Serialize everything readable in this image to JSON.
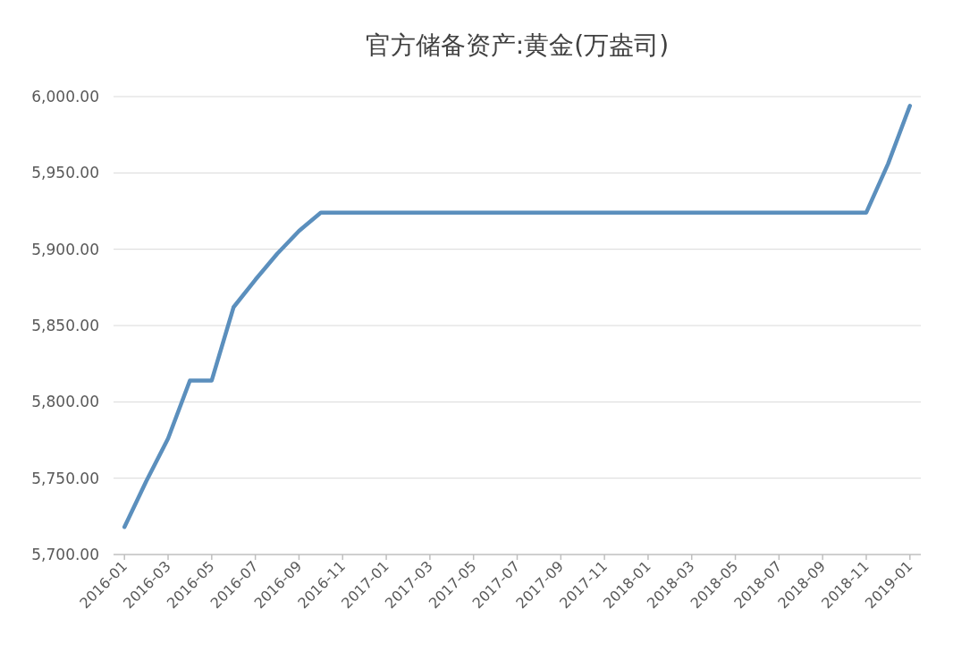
{
  "chart_data": {
    "type": "line",
    "title": "官方储备资产:黄金(万盎司)",
    "categories": [
      "2016-01",
      null,
      "2016-03",
      null,
      "2016-05",
      null,
      "2016-07",
      null,
      "2016-09",
      null,
      "2016-11",
      null,
      "2017-01",
      null,
      "2017-03",
      null,
      "2017-05",
      null,
      "2017-07",
      null,
      "2017-09",
      null,
      "2017-11",
      null,
      "2018-01",
      null,
      "2018-03",
      null,
      "2018-05",
      null,
      "2018-07",
      null,
      "2018-09",
      null,
      "2018-11",
      null,
      "2019-01"
    ],
    "series": [
      {
        "color": "#5b8fbd",
        "values": [
          5718,
          5748,
          5776,
          5814,
          5814,
          5862,
          5880,
          5897,
          5912,
          5924,
          5924,
          5924,
          5924,
          5924,
          5924,
          5924,
          5924,
          5924,
          5924,
          5924,
          5924,
          5924,
          5924,
          5924,
          5924,
          5924,
          5924,
          5924,
          5924,
          5924,
          5924,
          5924,
          5924,
          5924,
          5924,
          5956,
          5994
        ]
      }
    ],
    "ylim": [
      5700,
      6000
    ],
    "yticks": [
      {
        "value": 5700,
        "label": "5,700.00"
      },
      {
        "value": 5750,
        "label": "5,750.00"
      },
      {
        "value": 5800,
        "label": "5,800.00"
      },
      {
        "value": 5850,
        "label": "5,850.00"
      },
      {
        "value": 5900,
        "label": "5,900.00"
      },
      {
        "value": 5950,
        "label": "5,950.00"
      },
      {
        "value": 6000,
        "label": "6,000.00"
      }
    ],
    "grid": "y",
    "marker": "none",
    "line_style": "solid"
  }
}
